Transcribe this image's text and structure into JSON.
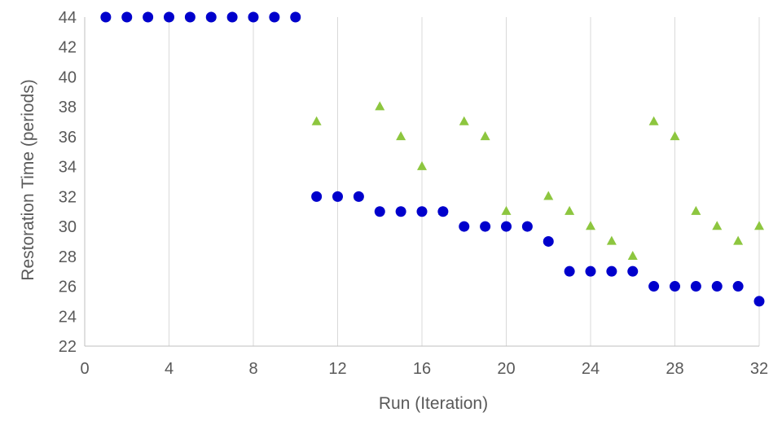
{
  "chart_data": {
    "type": "scatter",
    "title": "",
    "xlabel": "Run (Iteration)",
    "ylabel": "Restoration Time (periods)",
    "xlim": [
      0,
      32
    ],
    "ylim": [
      22,
      44
    ],
    "xticks": [
      0,
      4,
      8,
      12,
      16,
      20,
      24,
      28,
      32
    ],
    "yticks": [
      22,
      24,
      26,
      28,
      30,
      32,
      34,
      36,
      38,
      40,
      42,
      44
    ],
    "grid": "vertical",
    "legend": "none",
    "series": [
      {
        "marker": "triangle",
        "color": "#8dc63f",
        "x": [
          1,
          2,
          3,
          4,
          5,
          6,
          7,
          8,
          9,
          10,
          11,
          12,
          13,
          14,
          15,
          16,
          17,
          18,
          19,
          20,
          21,
          22,
          23,
          24,
          25,
          26,
          27,
          28,
          29,
          30,
          31,
          32
        ],
        "y": [
          44,
          44,
          44,
          44,
          44,
          44,
          44,
          44,
          44,
          44,
          37,
          32,
          32,
          38,
          36,
          34,
          31,
          37,
          36,
          31,
          30,
          32,
          31,
          30,
          29,
          28,
          37,
          36,
          31,
          30,
          29,
          30
        ]
      },
      {
        "marker": "circle",
        "color": "#0000cc",
        "x": [
          1,
          2,
          3,
          4,
          5,
          6,
          7,
          8,
          9,
          10,
          11,
          12,
          13,
          14,
          15,
          16,
          17,
          18,
          19,
          20,
          21,
          22,
          23,
          24,
          25,
          26,
          27,
          28,
          29,
          30,
          31,
          32
        ],
        "y": [
          44,
          44,
          44,
          44,
          44,
          44,
          44,
          44,
          44,
          44,
          32,
          32,
          32,
          31,
          31,
          31,
          31,
          30,
          30,
          30,
          30,
          29,
          27,
          27,
          27,
          27,
          26,
          26,
          26,
          26,
          26,
          25
        ]
      }
    ]
  }
}
